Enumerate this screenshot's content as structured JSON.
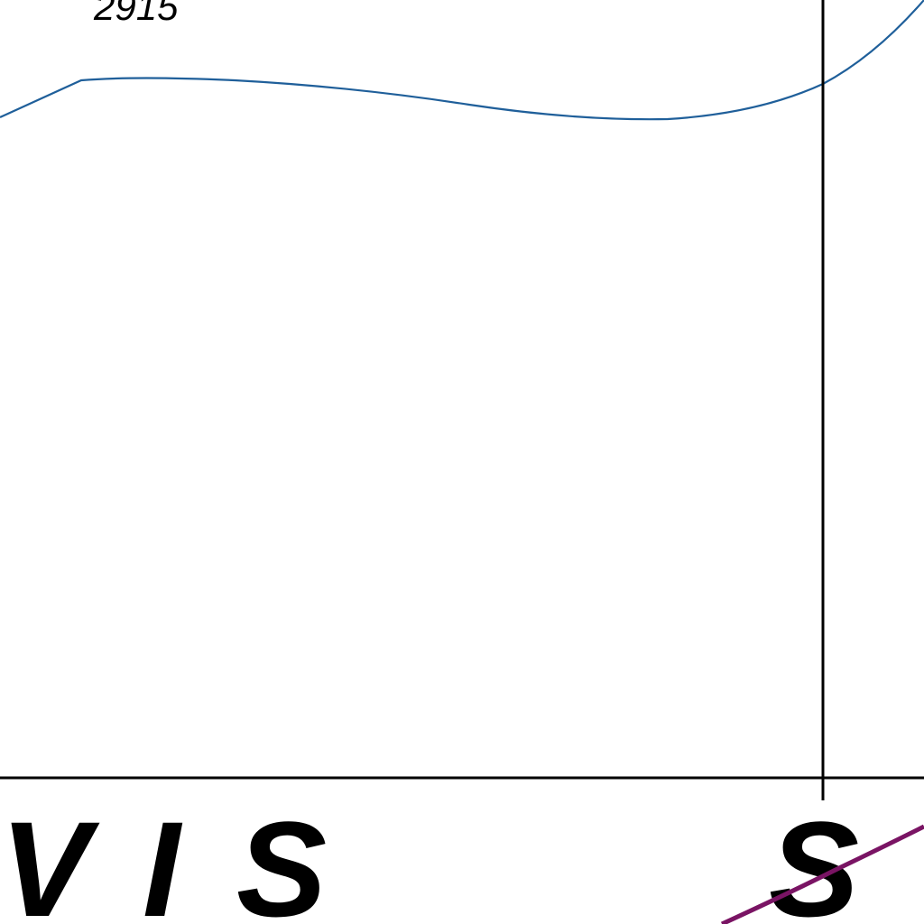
{
  "map": {
    "contour_label": "2915",
    "region_label_letters": [
      "V",
      "I",
      "S"
    ],
    "region_label_letter_right": "S",
    "colors": {
      "contour_line": "#1f5f9a",
      "boundary_line": "#000000",
      "road_line": "#7a1464",
      "background": "#ffffff",
      "text": "#000000"
    }
  }
}
